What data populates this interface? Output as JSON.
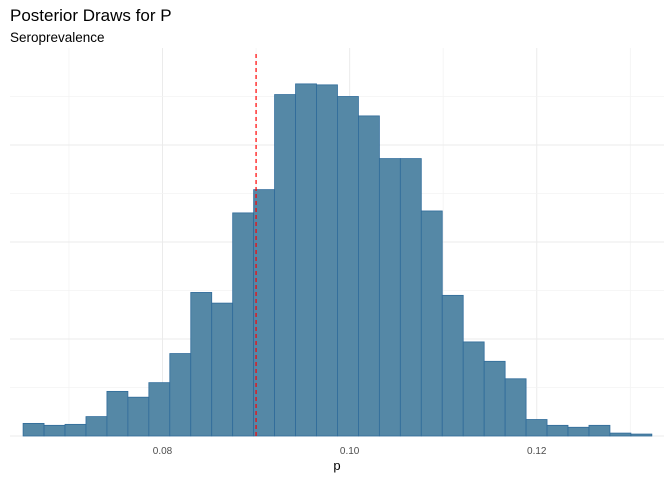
{
  "chart_data": {
    "type": "bar",
    "title": "Posterior Draws for P",
    "subtitle": "Seroprevalence",
    "xlabel": "p",
    "ylabel": "",
    "x_ticks": [
      0.08,
      0.1,
      0.12
    ],
    "x_tick_labels": [
      "0.08",
      "0.10",
      "0.12"
    ],
    "xlim": [
      0.0637,
      0.1336
    ],
    "ylim": [
      0,
      400
    ],
    "y_grid": [
      50,
      100,
      150,
      200,
      250,
      300,
      350
    ],
    "grid": true,
    "bin_width": 0.00224,
    "bin_start": 0.0651,
    "counts": [
      13,
      11,
      12,
      20,
      46,
      40,
      55,
      85,
      148,
      137,
      230,
      254,
      352,
      363,
      362,
      350,
      330,
      286,
      286,
      232,
      145,
      97,
      77,
      59,
      17,
      11,
      9,
      11,
      3,
      2
    ],
    "reference_line": {
      "x": 0.09,
      "color": "#ff0000",
      "style": "dashed"
    },
    "bar_fill": "#5588a6",
    "bar_outline": "#2f6b9a"
  }
}
